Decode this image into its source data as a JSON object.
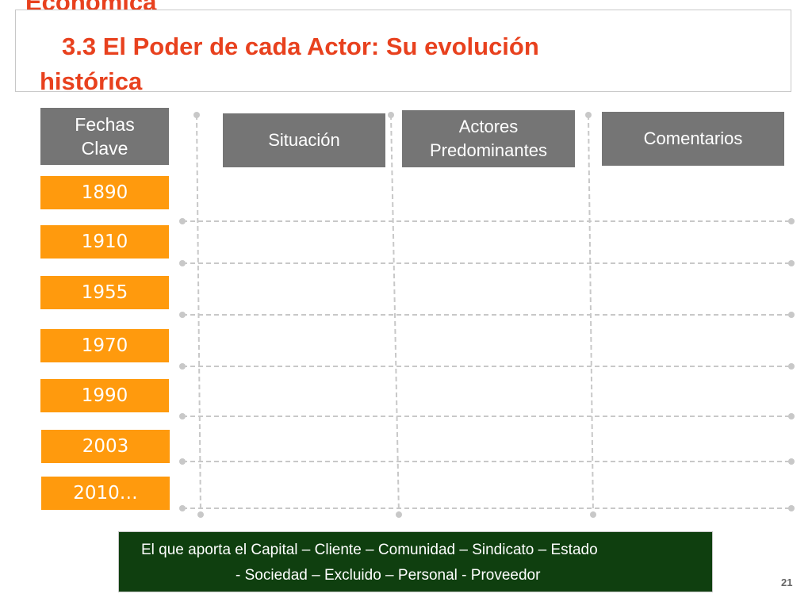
{
  "slide": {
    "title_partial": "Económica",
    "title_line1": "3.3 El Poder de cada Actor: Su evolución",
    "title_line2": "histórica",
    "page_number": "21"
  },
  "headers": {
    "dates": "Fechas Clave",
    "situacion": "Situación",
    "actores": "Actores Predominantes",
    "comentarios": "Comentarios"
  },
  "years": [
    "1890",
    "1910",
    "1955",
    "1970",
    "1990",
    "2003",
    "2010…"
  ],
  "legend": {
    "line1": "El que aporta el Capital – Cliente  – Comunidad –  Sindicato –  Estado",
    "line2": "-  Sociedad – Excluido – Personal - Proveedor"
  },
  "colors": {
    "title": "#e8411e",
    "header_bg": "#757575",
    "year_bg": "#ff9a0d",
    "legend_bg": "#0f3f0f",
    "grid_line": "#c8c8c8"
  }
}
